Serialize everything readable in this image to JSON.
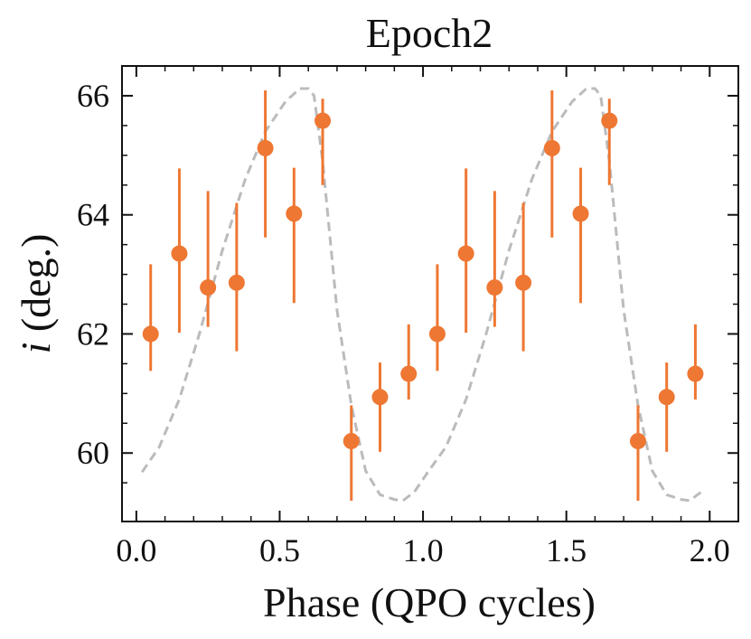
{
  "chart_data": {
    "type": "scatter",
    "title": "Epoch2",
    "xlabel": "Phase (QPO cycles)",
    "ylabel_italic": "i",
    "ylabel_rest": " (deg.)",
    "xlim": [
      -0.05,
      2.1
    ],
    "ylim": [
      58.85,
      66.5
    ],
    "xticks": [
      0.0,
      0.5,
      1.0,
      1.5,
      2.0
    ],
    "xtick_labels": [
      "0.0",
      "0.5",
      "1.0",
      "1.5",
      "2.0"
    ],
    "xminor": [
      0.1,
      0.2,
      0.3,
      0.4,
      0.6,
      0.7,
      0.8,
      0.9,
      1.1,
      1.2,
      1.3,
      1.4,
      1.6,
      1.7,
      1.8,
      1.9
    ],
    "yticks": [
      60,
      62,
      64,
      66
    ],
    "ytick_labels": [
      "60",
      "62",
      "64",
      "66"
    ],
    "yminor": [
      59.5,
      60.5,
      61.0,
      61.5,
      62.5,
      63.0,
      63.5,
      64.5,
      65.0,
      65.5
    ],
    "series": [
      {
        "name": "measurements",
        "color": "#ee7733",
        "x": [
          0.05,
          0.15,
          0.25,
          0.35,
          0.45,
          0.55,
          0.65,
          0.75,
          0.85,
          0.95,
          1.05,
          1.15,
          1.25,
          1.35,
          1.45,
          1.55,
          1.65,
          1.75,
          1.85,
          1.95
        ],
        "y": [
          62.0,
          63.35,
          62.78,
          62.86,
          65.12,
          64.02,
          65.58,
          60.2,
          60.94,
          61.33,
          62.0,
          63.35,
          62.78,
          62.86,
          65.12,
          64.02,
          65.58,
          60.2,
          60.94,
          61.33
        ],
        "x_err": 0.025,
        "y_err_low": [
          0.62,
          1.33,
          0.66,
          1.15,
          1.5,
          1.5,
          1.08,
          1.0,
          0.92,
          0.43,
          0.62,
          1.33,
          0.66,
          1.15,
          1.5,
          1.5,
          1.08,
          1.0,
          0.92,
          0.43
        ],
        "y_err_high": [
          1.17,
          1.43,
          1.62,
          1.34,
          0.97,
          0.77,
          0.37,
          0.6,
          0.58,
          0.83,
          1.17,
          1.43,
          1.62,
          1.34,
          0.97,
          0.77,
          0.37,
          0.6,
          0.58,
          0.83
        ]
      },
      {
        "name": "model",
        "color": "#bbbbbb",
        "style": "dashed",
        "x": [
          0.02,
          0.08,
          0.15,
          0.22,
          0.3,
          0.38,
          0.45,
          0.52,
          0.57,
          0.6,
          0.62,
          0.65,
          0.7,
          0.75,
          0.8,
          0.85,
          0.9,
          0.93,
          0.97,
          1.02,
          1.08,
          1.15,
          1.22,
          1.3,
          1.38,
          1.45,
          1.52,
          1.57,
          1.6,
          1.62,
          1.65,
          1.7,
          1.75,
          1.8,
          1.85,
          1.9,
          1.93,
          1.98
        ],
        "y": [
          59.68,
          60.1,
          60.9,
          62.0,
          63.4,
          64.6,
          65.4,
          65.9,
          66.12,
          66.12,
          66.0,
          64.9,
          62.4,
          60.8,
          59.7,
          59.3,
          59.22,
          59.2,
          59.35,
          59.7,
          60.1,
          60.9,
          62.0,
          63.4,
          64.6,
          65.4,
          65.9,
          66.12,
          66.12,
          66.0,
          64.9,
          62.4,
          60.8,
          59.7,
          59.3,
          59.22,
          59.2,
          59.38
        ]
      }
    ]
  }
}
